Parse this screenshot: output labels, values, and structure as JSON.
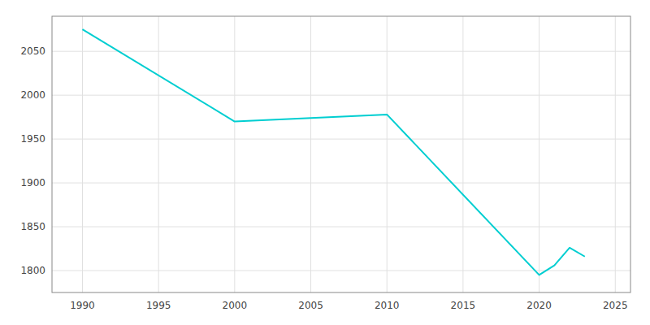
{
  "chart_data": {
    "type": "line",
    "x": [
      1990,
      2000,
      2010,
      2020,
      2021,
      2022,
      2023
    ],
    "values": [
      2075,
      1970,
      1978,
      1795,
      1806,
      1826,
      1816
    ],
    "color": "#00CED1",
    "xlim": [
      1988,
      2026
    ],
    "ylim": [
      1775,
      2090
    ],
    "xticks": [
      1990,
      1995,
      2000,
      2005,
      2010,
      2015,
      2020,
      2025
    ],
    "yticks": [
      1800,
      1850,
      1900,
      1950,
      2000,
      2050
    ],
    "grid": true
  }
}
